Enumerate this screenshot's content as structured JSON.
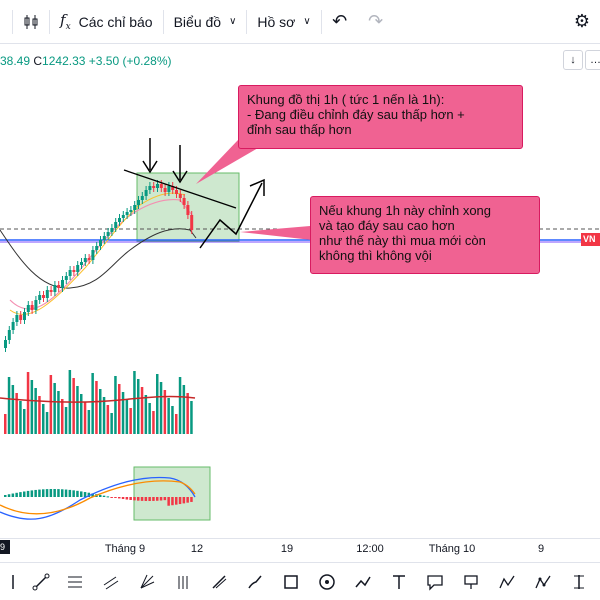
{
  "toolbar": {
    "indicators_label": "Các chỉ báo",
    "chart_label": "Biểu đồ",
    "profile_label": "Hồ sơ"
  },
  "legend": {
    "ohlc_tail": "38.49",
    "close_label": "C",
    "close_value": "1242.33",
    "change": "+3.50 (+0.28%)",
    "change_color": "#089981"
  },
  "callouts": {
    "top": [
      "Khung đồ thị 1h ( tức 1 nến là 1h):",
      "- Đang điều chỉnh đáy sau thấp hơn +",
      "đỉnh sau thấp hơn"
    ],
    "right": [
      "Nếu khung 1h này chỉnh xong",
      "và tạo đáy sau cao hơn",
      "như thế này thì mua mới còn",
      "không thì không vội"
    ]
  },
  "price_tag": {
    "text": "VN",
    "color": "#f23645"
  },
  "time_axis": {
    "labels": [
      "Tháng 9",
      "12",
      "19",
      "12:00",
      "Tháng 10",
      "9"
    ],
    "current_marker": "9"
  },
  "colors": {
    "up": "#089981",
    "down": "#f23645",
    "highlight_box": "#a5d6a7",
    "callout": "#f06292",
    "blue_line": "#2962ff"
  },
  "icons": {
    "candles": "candles-icon",
    "indicators": "fx-icon",
    "undo": "undo-icon",
    "redo": "redo-icon",
    "settings": "gear-icon"
  }
}
